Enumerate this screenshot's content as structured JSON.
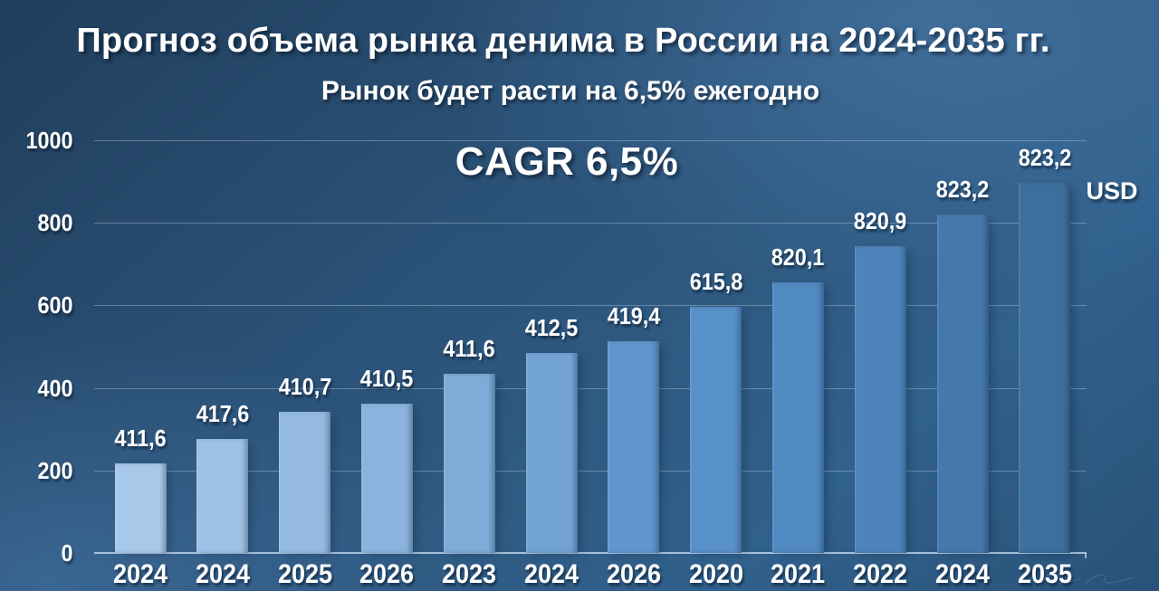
{
  "title": "Прогноз объема рынка денима в России на 2024-2035 гг.",
  "subtitle": "Рынок будет расти на 6,5% ежегодно",
  "cagr_label": "CAGR 6,5%",
  "unit_label": "USD",
  "colors": {
    "background_dark": "#203e5c",
    "background_mid": "#2f5a82",
    "text": "#ffffff",
    "gridline": "#c4d8ec"
  },
  "chart_data": {
    "type": "bar",
    "title": "Прогноз объема рынка денима в России на 2024-2035 гг.",
    "subtitle": "Рынок будет расти на 6,5% ежегодно",
    "annotation": "CAGR 6,5%",
    "unit": "USD",
    "xlabel": "",
    "ylabel": "",
    "ylim": [
      0,
      1000
    ],
    "y_ticks": [
      0,
      200,
      400,
      600,
      800,
      1000
    ],
    "grid": true,
    "legend_position": "none",
    "categories": [
      "2024",
      "2024",
      "2025",
      "2026",
      "2023",
      "2024",
      "2026",
      "2020",
      "2021",
      "2022",
      "2024",
      "2035"
    ],
    "value_labels": [
      "411,6",
      "417,6",
      "410,7",
      "410,5",
      "411,6",
      "412,5",
      "419,4",
      "615,8",
      "820,1",
      "820,9",
      "823,2",
      "823,2"
    ],
    "values": [
      411.6,
      417.6,
      410.7,
      410.5,
      411.6,
      412.5,
      419.4,
      615.8,
      820.1,
      820.9,
      823.2,
      823.2
    ],
    "bar_heights_visual_units": [
      217,
      276,
      342,
      362,
      434,
      485,
      513,
      596,
      656,
      743,
      820,
      897
    ],
    "bar_colors": [
      "#a8c8ea",
      "#9ec2e6",
      "#95bbe2",
      "#8bb3dd",
      "#7eabd8",
      "#73a3d3",
      "#6197cd",
      "#5890c8",
      "#5189c2",
      "#4d84bc",
      "#4579ab",
      "#3d6f9d"
    ]
  }
}
